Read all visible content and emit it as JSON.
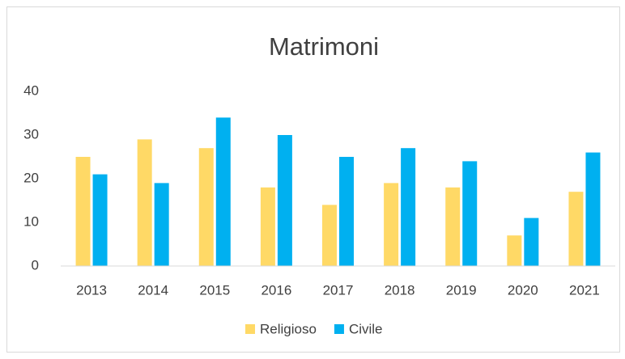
{
  "chart_data": {
    "type": "bar",
    "title": "Matrimoni",
    "categories": [
      "2013",
      "2014",
      "2015",
      "2016",
      "2017",
      "2018",
      "2019",
      "2020",
      "2021"
    ],
    "series": [
      {
        "name": "Religioso",
        "color": "#ffd966",
        "values": [
          25,
          29,
          27,
          18,
          14,
          19,
          18,
          7,
          17
        ]
      },
      {
        "name": "Civile",
        "color": "#00b0f0",
        "values": [
          21,
          19,
          34,
          30,
          25,
          27,
          24,
          11,
          26
        ]
      }
    ],
    "ylim": [
      0,
      40
    ],
    "yticks": [
      0,
      10,
      20,
      30,
      40
    ],
    "grid": false,
    "legend": "bottom"
  }
}
